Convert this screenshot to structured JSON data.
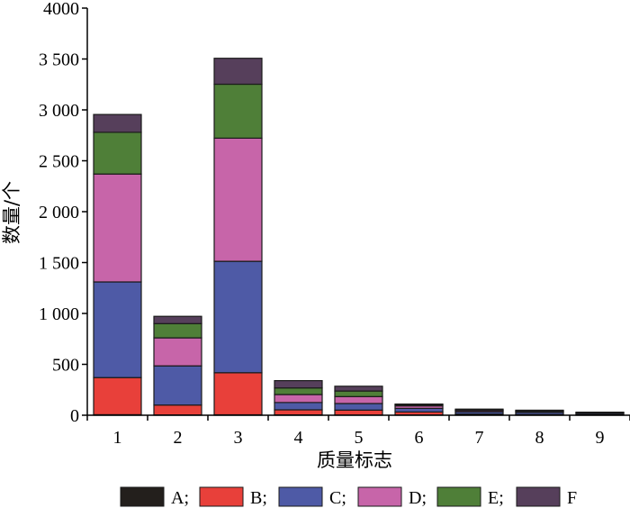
{
  "chart_data": {
    "type": "bar",
    "stacked": true,
    "xlabel": "质量标志",
    "ylabel": "数量/个",
    "ylim": [
      0,
      4000
    ],
    "yticks": [
      0,
      500,
      1000,
      1500,
      2000,
      2500,
      3000,
      3500,
      4000
    ],
    "ytick_labels": [
      "0",
      "500",
      "1 000",
      "1 500",
      "2 000",
      "2 500",
      "3 000",
      "3 500",
      "4000"
    ],
    "categories": [
      "1",
      "2",
      "3",
      "4",
      "5",
      "6",
      "7",
      "8",
      "9"
    ],
    "legend_position": "bottom",
    "series": [
      {
        "name": "A;",
        "color": "#231f1c",
        "values": [
          5,
          3,
          5,
          3,
          2,
          2,
          2,
          2,
          3
        ]
      },
      {
        "name": "B;",
        "color": "#e8403a",
        "values": [
          365,
          97,
          412,
          50,
          48,
          30,
          10,
          5,
          2
        ]
      },
      {
        "name": "C;",
        "color": "#4e5aa6",
        "values": [
          940,
          385,
          1095,
          72,
          65,
          35,
          22,
          20,
          12
        ]
      },
      {
        "name": "D;",
        "color": "#c765a9",
        "values": [
          1060,
          275,
          1210,
          78,
          68,
          25,
          13,
          11,
          6
        ]
      },
      {
        "name": "E;",
        "color": "#4f7f38",
        "values": [
          410,
          140,
          530,
          65,
          55,
          12,
          6,
          5,
          3
        ]
      },
      {
        "name": "F;",
        "color": "#563f5b",
        "values": [
          175,
          72,
          255,
          72,
          47,
          6,
          7,
          7,
          4
        ]
      }
    ],
    "legend_labels": [
      "A;",
      "B;",
      "C;",
      "D;",
      "E;",
      "F"
    ]
  }
}
